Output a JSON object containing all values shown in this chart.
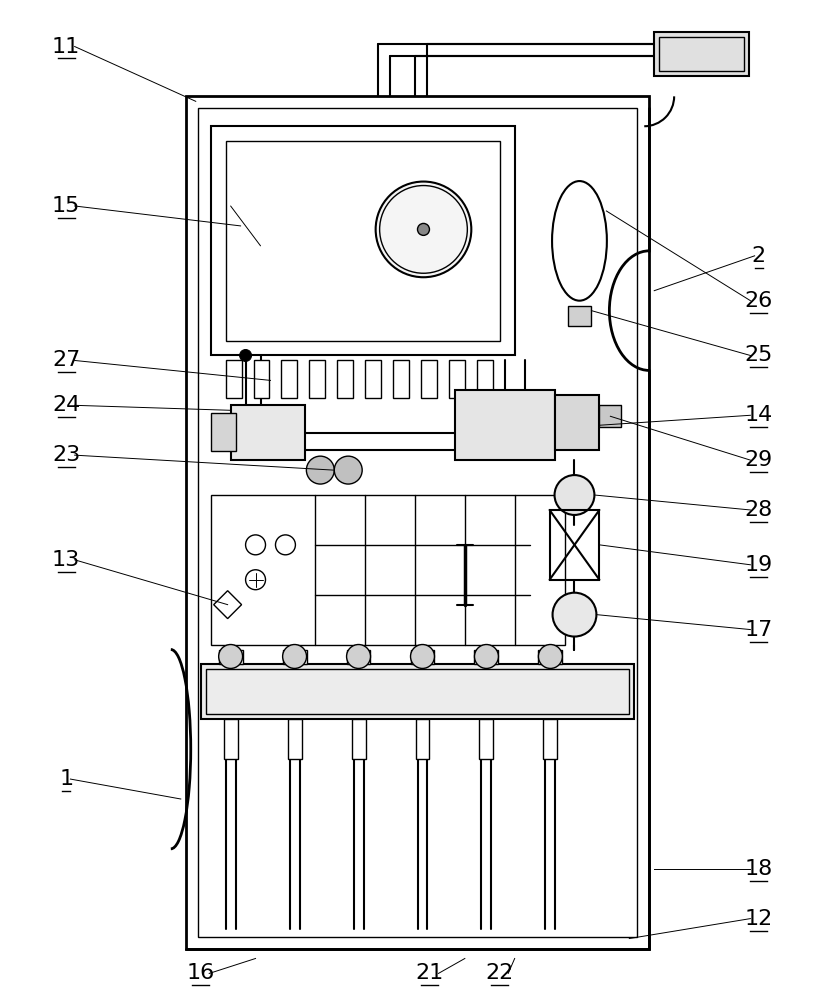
{
  "bg_color": "#ffffff",
  "line_color": "#000000",
  "lw_outer": 2.0,
  "lw_main": 1.5,
  "lw_thin": 1.0,
  "lw_hair": 0.7,
  "label_fontsize": 16
}
